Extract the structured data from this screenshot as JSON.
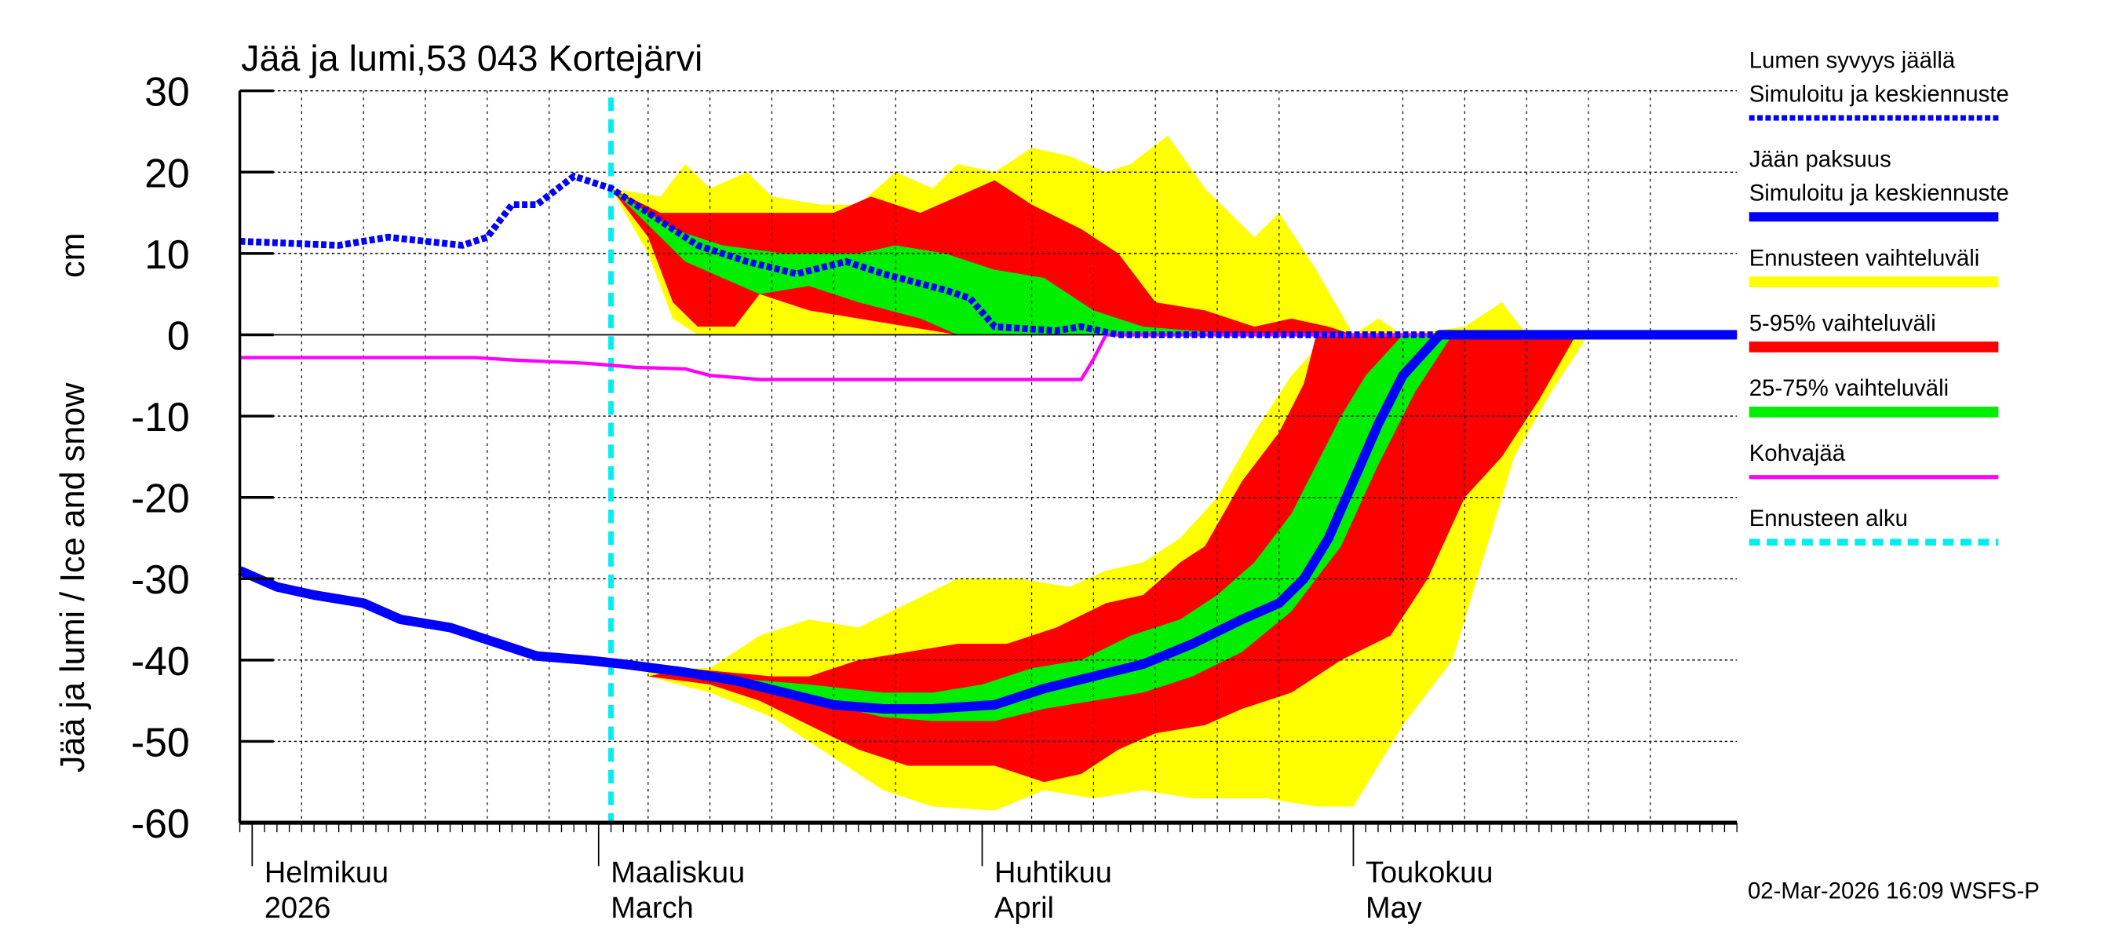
{
  "chart_data": {
    "type": "area",
    "title": "Jää ja lumi,53 043 Kortejärvi",
    "ylabel": "Jää ja lumi / Ice and snow",
    "yunit": "cm",
    "ylim": [
      -60,
      30
    ],
    "yticks": [
      30,
      20,
      10,
      0,
      -10,
      -20,
      -30,
      -40,
      -50,
      -60
    ],
    "xlim": [
      "2026-01-31",
      "2026-06-01"
    ],
    "grid": true,
    "legend_position": "right",
    "xticks": [
      {
        "date": "2026-02-01",
        "line1": "Helmikuu",
        "line2": "2026"
      },
      {
        "date": "2026-03-01",
        "line1": "Maaliskuu",
        "line2": "March"
      },
      {
        "date": "2026-04-01",
        "line1": "Huhtikuu",
        "line2": "April"
      },
      {
        "date": "2026-05-01",
        "line1": "Toukokuu",
        "line2": "May"
      }
    ],
    "forecast_start": "2026-03-02",
    "colors": {
      "snow": "#0000ff",
      "ice": "#0000ff",
      "yellow": "#ffff00",
      "red": "#ff0000",
      "green": "#00ee00",
      "slush": "#ff00ff",
      "forecast_start": "#00eeee"
    },
    "legend": [
      {
        "line1": "Lumen syvyys jäällä",
        "line2": "Simuloitu ja keskiennuste",
        "style": "dotted",
        "color": "#0000ff"
      },
      {
        "line1": "Jään paksuus",
        "line2": "Simuloitu ja keskiennuste",
        "style": "thick",
        "color": "#0000ff"
      },
      {
        "line1": "Ennusteen vaihteluväli",
        "style": "band",
        "color": "#ffff00"
      },
      {
        "line1": "5-95% vaihteluväli",
        "style": "band",
        "color": "#ff0000"
      },
      {
        "line1": "25-75% vaihteluväli",
        "style": "band",
        "color": "#00ee00"
      },
      {
        "line1": "Kohvajää",
        "style": "line",
        "color": "#ff00ff"
      },
      {
        "line1": "Ennusteen alku",
        "style": "dashed",
        "color": "#00eeee"
      }
    ],
    "snow_bands": {
      "yellow": {
        "upper": [
          [
            "2026-03-02",
            18
          ],
          [
            "2026-03-06",
            17
          ],
          [
            "2026-03-08",
            21
          ],
          [
            "2026-03-10",
            18
          ],
          [
            "2026-03-13",
            20
          ],
          [
            "2026-03-15",
            17
          ],
          [
            "2026-03-19",
            16
          ],
          [
            "2026-03-22",
            16
          ],
          [
            "2026-03-25",
            20
          ],
          [
            "2026-03-28",
            18
          ],
          [
            "2026-03-30",
            21
          ],
          [
            "2026-04-02",
            20
          ],
          [
            "2026-04-05",
            23
          ],
          [
            "2026-04-08",
            22
          ],
          [
            "2026-04-11",
            20
          ],
          [
            "2026-04-13",
            21
          ],
          [
            "2026-04-16",
            24.5
          ],
          [
            "2026-04-19",
            18
          ],
          [
            "2026-04-23",
            12
          ],
          [
            "2026-04-25",
            15
          ],
          [
            "2026-04-28",
            8
          ],
          [
            "2026-05-01",
            0
          ],
          [
            "2026-05-03",
            2
          ],
          [
            "2026-05-05",
            0
          ],
          [
            "2026-05-10",
            1
          ],
          [
            "2026-05-13",
            4
          ],
          [
            "2026-05-15",
            0
          ]
        ],
        "lower": [
          [
            "2026-03-02",
            18
          ],
          [
            "2026-03-05",
            10
          ],
          [
            "2026-03-07",
            2
          ],
          [
            "2026-03-09",
            0
          ],
          [
            "2026-05-15",
            0
          ]
        ]
      },
      "red": {
        "upper": [
          [
            "2026-03-02",
            18
          ],
          [
            "2026-03-06",
            15
          ],
          [
            "2026-03-10",
            15
          ],
          [
            "2026-03-14",
            15
          ],
          [
            "2026-03-20",
            15
          ],
          [
            "2026-03-23",
            17
          ],
          [
            "2026-03-27",
            15
          ],
          [
            "2026-03-30",
            17
          ],
          [
            "2026-04-02",
            19
          ],
          [
            "2026-04-05",
            16
          ],
          [
            "2026-04-09",
            13
          ],
          [
            "2026-04-12",
            10
          ],
          [
            "2026-04-15",
            4
          ],
          [
            "2026-04-19",
            3
          ],
          [
            "2026-04-23",
            1
          ],
          [
            "2026-04-26",
            2
          ],
          [
            "2026-04-29",
            1
          ],
          [
            "2026-05-01",
            0
          ]
        ],
        "lower": [
          [
            "2026-03-02",
            18
          ],
          [
            "2026-03-05",
            12
          ],
          [
            "2026-03-07",
            4
          ],
          [
            "2026-03-09",
            1
          ],
          [
            "2026-03-12",
            1
          ],
          [
            "2026-03-14",
            5
          ],
          [
            "2026-03-18",
            3
          ],
          [
            "2026-03-22",
            2
          ],
          [
            "2026-03-26",
            1
          ],
          [
            "2026-03-30",
            0
          ],
          [
            "2026-05-01",
            0
          ]
        ]
      },
      "green": {
        "upper": [
          [
            "2026-03-02",
            18
          ],
          [
            "2026-03-07",
            13
          ],
          [
            "2026-03-11",
            11
          ],
          [
            "2026-03-16",
            10
          ],
          [
            "2026-03-22",
            10
          ],
          [
            "2026-03-25",
            11
          ],
          [
            "2026-03-29",
            10
          ],
          [
            "2026-04-02",
            8
          ],
          [
            "2026-04-06",
            7
          ],
          [
            "2026-04-10",
            3
          ],
          [
            "2026-04-14",
            1
          ],
          [
            "2026-04-18",
            0.5
          ],
          [
            "2026-04-22",
            0
          ]
        ],
        "lower": [
          [
            "2026-03-02",
            18
          ],
          [
            "2026-03-08",
            9
          ],
          [
            "2026-03-11",
            7
          ],
          [
            "2026-03-14",
            5
          ],
          [
            "2026-03-18",
            6
          ],
          [
            "2026-03-22",
            4
          ],
          [
            "2026-03-27",
            2
          ],
          [
            "2026-03-30",
            0
          ],
          [
            "2026-04-22",
            0
          ]
        ]
      }
    },
    "ice_bands": {
      "yellow": {
        "upper": [
          [
            "2026-03-05",
            -41
          ],
          [
            "2026-03-10",
            -41
          ],
          [
            "2026-03-14",
            -37
          ],
          [
            "2026-03-18",
            -35
          ],
          [
            "2026-03-22",
            -36
          ],
          [
            "2026-03-26",
            -33
          ],
          [
            "2026-03-30",
            -30
          ],
          [
            "2026-04-04",
            -30
          ],
          [
            "2026-04-08",
            -31
          ],
          [
            "2026-04-11",
            -29
          ],
          [
            "2026-04-14",
            -28
          ],
          [
            "2026-04-17",
            -25
          ],
          [
            "2026-04-20",
            -20
          ],
          [
            "2026-04-23",
            -12
          ],
          [
            "2026-04-26",
            -5
          ],
          [
            "2026-04-29",
            0
          ]
        ],
        "lower": [
          [
            "2026-03-05",
            -42
          ],
          [
            "2026-03-10",
            -44
          ],
          [
            "2026-03-15",
            -47
          ],
          [
            "2026-03-20",
            -52
          ],
          [
            "2026-03-24",
            -56
          ],
          [
            "2026-03-28",
            -58
          ],
          [
            "2026-04-02",
            -58.5
          ],
          [
            "2026-04-06",
            -56
          ],
          [
            "2026-04-10",
            -57
          ],
          [
            "2026-04-14",
            -56
          ],
          [
            "2026-04-18",
            -57
          ],
          [
            "2026-04-24",
            -57
          ],
          [
            "2026-04-28",
            -58
          ],
          [
            "2026-05-01",
            -58
          ],
          [
            "2026-05-05",
            -48
          ],
          [
            "2026-05-09",
            -40
          ],
          [
            "2026-05-11",
            -30
          ],
          [
            "2026-05-14",
            -15
          ],
          [
            "2026-05-17",
            -7
          ],
          [
            "2026-05-20",
            0
          ],
          [
            "2026-04-29",
            0
          ]
        ]
      },
      "red": {
        "upper": [
          [
            "2026-03-08",
            -41
          ],
          [
            "2026-03-15",
            -42
          ],
          [
            "2026-03-18",
            -42
          ],
          [
            "2026-03-22",
            -40
          ],
          [
            "2026-03-26",
            -39
          ],
          [
            "2026-03-30",
            -38
          ],
          [
            "2026-04-03",
            -38
          ],
          [
            "2026-04-07",
            -36
          ],
          [
            "2026-04-11",
            -33
          ],
          [
            "2026-04-14",
            -32
          ],
          [
            "2026-04-17",
            -28
          ],
          [
            "2026-04-19",
            -26
          ],
          [
            "2026-04-22",
            -18
          ],
          [
            "2026-04-25",
            -12
          ],
          [
            "2026-04-27",
            -6
          ],
          [
            "2026-04-28",
            0
          ]
        ],
        "lower": [
          [
            "2026-03-05",
            -42
          ],
          [
            "2026-03-10",
            -43
          ],
          [
            "2026-03-14",
            -45
          ],
          [
            "2026-03-18",
            -48
          ],
          [
            "2026-03-22",
            -51
          ],
          [
            "2026-03-26",
            -53
          ],
          [
            "2026-04-02",
            -53
          ],
          [
            "2026-04-06",
            -55
          ],
          [
            "2026-04-09",
            -54
          ],
          [
            "2026-04-12",
            -51
          ],
          [
            "2026-04-15",
            -49
          ],
          [
            "2026-04-19",
            -48
          ],
          [
            "2026-04-22",
            -46
          ],
          [
            "2026-04-26",
            -44
          ],
          [
            "2026-04-30",
            -40
          ],
          [
            "2026-05-04",
            -37
          ],
          [
            "2026-05-07",
            -30
          ],
          [
            "2026-05-10",
            -20
          ],
          [
            "2026-05-13",
            -15
          ],
          [
            "2026-05-16",
            -8
          ],
          [
            "2026-05-19",
            0
          ],
          [
            "2026-04-28",
            0
          ]
        ]
      },
      "green": {
        "upper": [
          [
            "2026-03-10",
            -42
          ],
          [
            "2026-03-18",
            -43
          ],
          [
            "2026-03-24",
            -44
          ],
          [
            "2026-03-28",
            -44
          ],
          [
            "2026-04-01",
            -43
          ],
          [
            "2026-04-05",
            -41
          ],
          [
            "2026-04-09",
            -40
          ],
          [
            "2026-04-13",
            -37
          ],
          [
            "2026-04-17",
            -35
          ],
          [
            "2026-04-20",
            -32
          ],
          [
            "2026-04-23",
            -28
          ],
          [
            "2026-04-26",
            -22
          ],
          [
            "2026-04-28",
            -16
          ],
          [
            "2026-04-30",
            -10
          ],
          [
            "2026-05-02",
            -5
          ],
          [
            "2026-05-05",
            0
          ]
        ],
        "lower": [
          [
            "2026-03-10",
            -42
          ],
          [
            "2026-03-18",
            -45
          ],
          [
            "2026-03-24",
            -47
          ],
          [
            "2026-03-28",
            -47.5
          ],
          [
            "2026-04-02",
            -47.5
          ],
          [
            "2026-04-06",
            -46
          ],
          [
            "2026-04-10",
            -45
          ],
          [
            "2026-04-14",
            -44
          ],
          [
            "2026-04-18",
            -42
          ],
          [
            "2026-04-22",
            -39
          ],
          [
            "2026-04-26",
            -34
          ],
          [
            "2026-04-30",
            -26
          ],
          [
            "2026-05-03",
            -16
          ],
          [
            "2026-05-06",
            -7
          ],
          [
            "2026-05-09",
            0
          ],
          [
            "2026-05-05",
            0
          ]
        ]
      }
    },
    "snow_depth": [
      [
        "2026-01-31",
        11.5
      ],
      [
        "2026-02-08",
        11
      ],
      [
        "2026-02-12",
        12
      ],
      [
        "2026-02-18",
        11
      ],
      [
        "2026-02-20",
        12
      ],
      [
        "2026-02-22",
        16
      ],
      [
        "2026-02-24",
        16
      ],
      [
        "2026-02-27",
        19.5
      ],
      [
        "2026-03-02",
        18
      ],
      [
        "2026-03-05",
        15
      ],
      [
        "2026-03-09",
        11
      ],
      [
        "2026-03-13",
        9
      ],
      [
        "2026-03-17",
        7.5
      ],
      [
        "2026-03-21",
        9
      ],
      [
        "2026-03-24",
        7.5
      ],
      [
        "2026-03-29",
        5.5
      ],
      [
        "2026-03-31",
        4.5
      ],
      [
        "2026-04-02",
        1
      ],
      [
        "2026-04-07",
        0.5
      ],
      [
        "2026-04-09",
        1
      ],
      [
        "2026-04-12",
        0
      ],
      [
        "2026-06-01",
        0
      ]
    ],
    "ice_thickness": [
      [
        "2026-01-31",
        -29
      ],
      [
        "2026-02-03",
        -31
      ],
      [
        "2026-02-06",
        -32
      ],
      [
        "2026-02-10",
        -33
      ],
      [
        "2026-02-13",
        -35
      ],
      [
        "2026-02-17",
        -36
      ],
      [
        "2026-02-20",
        -37.5
      ],
      [
        "2026-02-24",
        -39.5
      ],
      [
        "2026-02-28",
        -40
      ],
      [
        "2026-03-03",
        -40.5
      ],
      [
        "2026-03-08",
        -41.5
      ],
      [
        "2026-03-12",
        -42.5
      ],
      [
        "2026-03-16",
        -44
      ],
      [
        "2026-03-20",
        -45.5
      ],
      [
        "2026-03-24",
        -46
      ],
      [
        "2026-03-28",
        -46
      ],
      [
        "2026-04-02",
        -45.5
      ],
      [
        "2026-04-06",
        -43.5
      ],
      [
        "2026-04-10",
        -42
      ],
      [
        "2026-04-14",
        -40.5
      ],
      [
        "2026-04-18",
        -38
      ],
      [
        "2026-04-22",
        -35
      ],
      [
        "2026-04-25",
        -33
      ],
      [
        "2026-04-27",
        -30
      ],
      [
        "2026-04-29",
        -25
      ],
      [
        "2026-05-01",
        -18
      ],
      [
        "2026-05-03",
        -11
      ],
      [
        "2026-05-05",
        -5
      ],
      [
        "2026-05-08",
        0
      ],
      [
        "2026-06-01",
        0
      ]
    ],
    "slush_ice": [
      [
        "2026-01-31",
        -2.8
      ],
      [
        "2026-02-19",
        -2.8
      ],
      [
        "2026-02-22",
        -3.1
      ],
      [
        "2026-02-28",
        -3.5
      ],
      [
        "2026-03-04",
        -4
      ],
      [
        "2026-03-08",
        -4.2
      ],
      [
        "2026-03-10",
        -5
      ],
      [
        "2026-03-14",
        -5.5
      ],
      [
        "2026-04-09",
        -5.5
      ],
      [
        "2026-04-10",
        -3
      ],
      [
        "2026-04-11",
        0
      ],
      [
        "2026-06-01",
        0
      ]
    ]
  },
  "footer": "02-Mar-2026 16:09 WSFS-P"
}
